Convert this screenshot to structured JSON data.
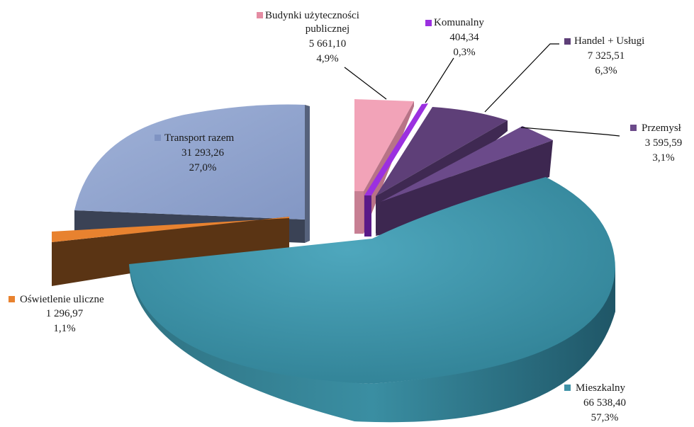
{
  "chart_data": {
    "type": "pie",
    "style": "3d-exploded",
    "title": "",
    "slices": [
      {
        "name": "Budynki użyteczności publicznej",
        "value": "5 661,10",
        "percent": "4,9%",
        "color": "#f2a3b8"
      },
      {
        "name": "Komunalny",
        "value": "404,34",
        "percent": "0,3%",
        "color": "#9b30e0"
      },
      {
        "name": "Handel + Usługi",
        "value": "7 325,51",
        "percent": "6,3%",
        "color": "#5e3f78"
      },
      {
        "name": "Przemysł",
        "value": "3 595,59",
        "percent": "3,1%",
        "color": "#6b4a8a"
      },
      {
        "name": "Mieszkalny",
        "value": "66 538,40",
        "percent": "57,3%",
        "color": "#3f93a8"
      },
      {
        "name": "Oświetlenie uliczne",
        "value": "1 296,97",
        "percent": "1,1%",
        "color": "#e8822f"
      },
      {
        "name": "Transport razem",
        "value": "31 293,26",
        "percent": "27,0%",
        "color": "#8fa3cd"
      }
    ]
  }
}
